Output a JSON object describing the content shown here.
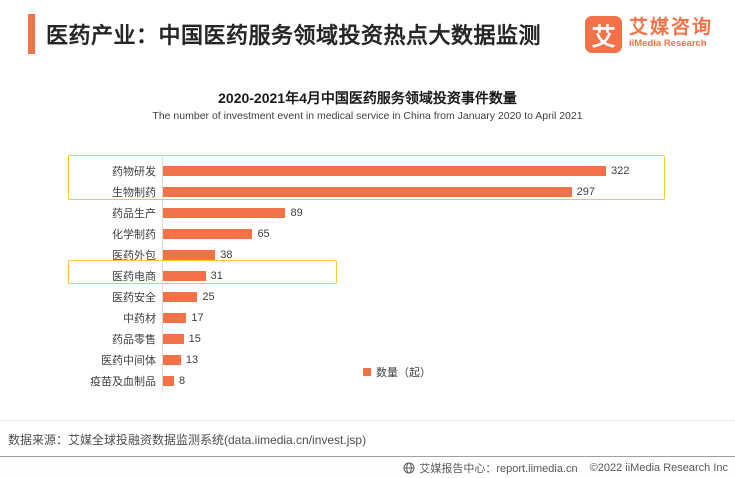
{
  "header": {
    "title": "医药产业：中国医药服务领域投资热点大数据监测",
    "logo": {
      "glyph": "艾",
      "name_cn": "艾媒咨询",
      "name_en": "iiMedia Research"
    }
  },
  "chart_data": {
    "type": "bar",
    "orientation": "horizontal",
    "title": "2020-2021年4月中国医药服务领域投资事件数量",
    "subtitle": "The number of investment event in medical service in China from January 2020 to April 2021",
    "categories": [
      "药物研发",
      "生物制药",
      "药品生产",
      "化学制药",
      "医药外包",
      "医药电商",
      "医药安全",
      "中药材",
      "药品零售",
      "医药中间体",
      "疫苗及血制品"
    ],
    "values": [
      322,
      297,
      89,
      65,
      38,
      31,
      25,
      17,
      15,
      13,
      8
    ],
    "xlim": [
      0,
      460
    ],
    "grid": false,
    "legend": {
      "label": "数量（起）",
      "position": "bottom-center"
    },
    "highlights": [
      {
        "categories": [
          "药物研发",
          "生物制药"
        ]
      },
      {
        "categories": [
          "医药电商"
        ]
      }
    ],
    "bar_color": "#F37248",
    "highlight_border_color": "#FFC42E"
  },
  "footer": {
    "source": "数据来源：艾媒全球投融资数据监测系统(data.iimedia.cn/invest.jsp)",
    "report_center": "艾媒报告中心：report.iimedia.cn",
    "copyright": "©2022  iiMedia Research  Inc"
  },
  "colors": {
    "accent_orange": "#F37248",
    "highlight_yellow": "#FFC42E",
    "axis_line": "#D9D9D9",
    "title_text": "#262626",
    "body_text": "#404040",
    "muted_text": "#595959"
  }
}
